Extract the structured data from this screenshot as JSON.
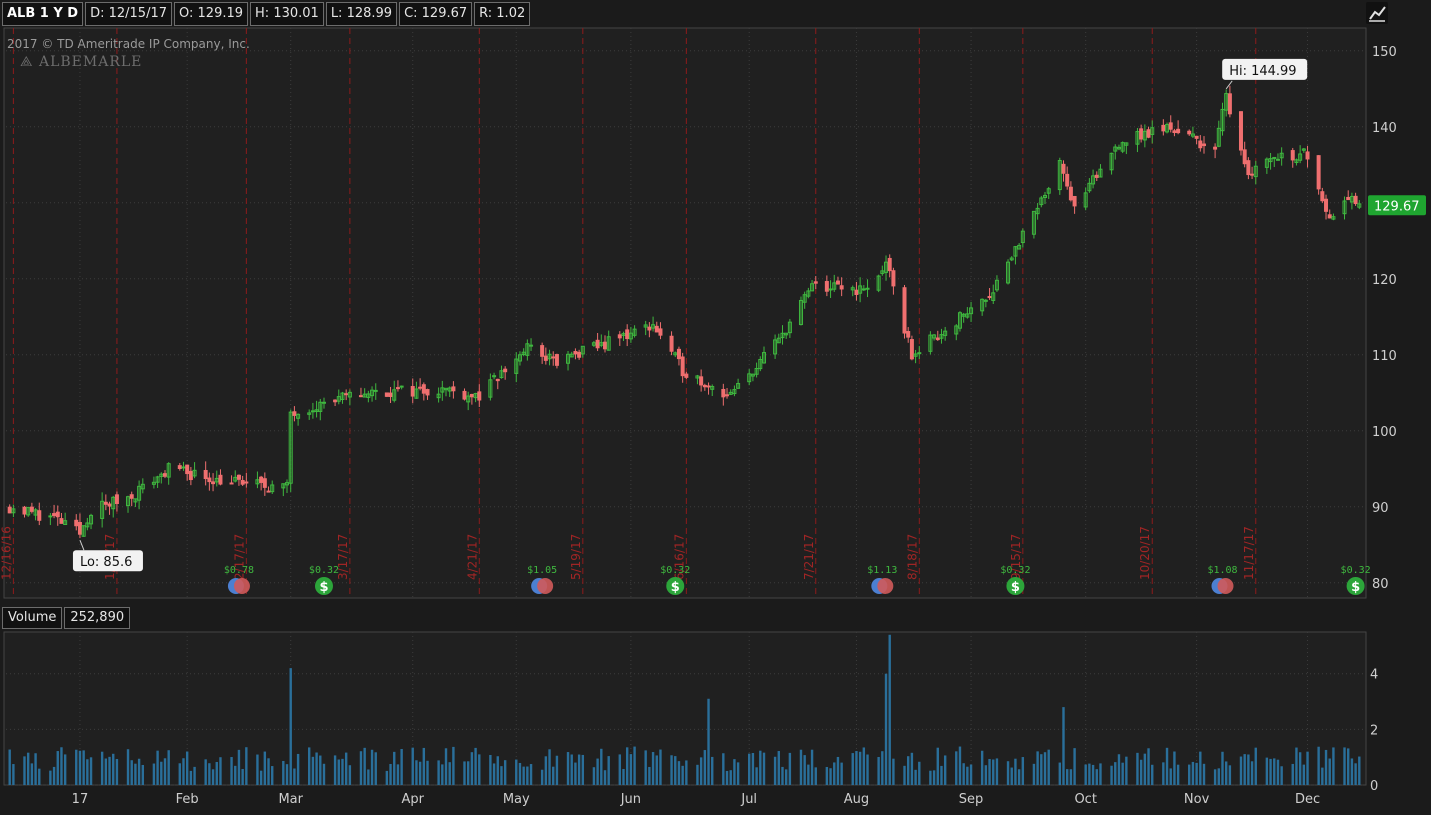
{
  "header": {
    "symbol": "ALB 1 Y D",
    "date": "D: 12/15/17",
    "open": "O: 129.19",
    "high": "H: 130.01",
    "low": "L: 128.99",
    "close": "C: 129.67",
    "range": "R: 1.02"
  },
  "copyright": "2017 © TD Ameritrade IP Company, Inc.",
  "logo_text": "ALBEMARLE",
  "volume_panel": {
    "label": "Volume",
    "value": "252,890"
  },
  "tool_icon": "chart-style-icon",
  "colors": {
    "up": "#3fb83f",
    "down": "#ef6f6f",
    "volume": "#2a6f9a",
    "grid": "#3c3c3c",
    "event_line": "#8c1b1b",
    "last_price_bg": "#1fa530",
    "background": "#1b1b1b"
  },
  "chart_data": {
    "type": "candlestick",
    "price_axis": {
      "ylim": [
        78,
        153
      ],
      "ticks": [
        "80",
        "90",
        "100",
        "110",
        "120",
        "130",
        "140",
        "150"
      ]
    },
    "volume_axis": {
      "ylim": [
        0,
        5.5
      ],
      "ticks": [
        "0",
        "2",
        "4"
      ]
    },
    "x_ticks": [
      "17",
      "Feb",
      "Mar",
      "Apr",
      "May",
      "Jun",
      "Jul",
      "Aug",
      "Sep",
      "Oct",
      "Nov",
      "Dec"
    ],
    "high_label": "Hi: 144.99",
    "low_label": "Lo: 85.6",
    "last_price": "129.67",
    "event_lines": [
      "12/16/16",
      "1/13/17",
      "2/17/17",
      "3/17/17",
      "4/21/17",
      "5/19/17",
      "6/16/17",
      "7/21/17",
      "8/18/17",
      "9/15/17",
      "10/20/17",
      "11/17/17"
    ],
    "dividends": [
      {
        "label": "$0.78",
        "type": "earnings"
      },
      {
        "label": "$0.32",
        "type": "dividend"
      },
      {
        "label": "$1.05",
        "type": "earnings"
      },
      {
        "label": "$0.32",
        "type": "dividend"
      },
      {
        "label": "$1.13",
        "type": "earnings"
      },
      {
        "label": "$0.32",
        "type": "dividend"
      },
      {
        "label": "$1.08",
        "type": "earnings"
      },
      {
        "label": "$0.32",
        "type": "dividend"
      }
    ],
    "price_anchors": [
      {
        "date": "2016-12-15",
        "close": 90.0
      },
      {
        "date": "2016-12-27",
        "close": 88.5
      },
      {
        "date": "2017-01-03",
        "close": 86.5
      },
      {
        "date": "2017-01-06",
        "close": 89.5
      },
      {
        "date": "2017-01-17",
        "close": 91.5
      },
      {
        "date": "2017-01-27",
        "close": 95.0
      },
      {
        "date": "2017-02-10",
        "close": 93.5
      },
      {
        "date": "2017-02-28",
        "close": 92.5
      },
      {
        "date": "2017-03-01",
        "close": 102.5
      },
      {
        "date": "2017-03-21",
        "close": 105.0
      },
      {
        "date": "2017-04-12",
        "close": 105.5
      },
      {
        "date": "2017-04-21",
        "close": 104.5
      },
      {
        "date": "2017-05-04",
        "close": 111.0
      },
      {
        "date": "2017-05-12",
        "close": 109.0
      },
      {
        "date": "2017-06-07",
        "close": 114.0
      },
      {
        "date": "2017-06-15",
        "close": 108.0
      },
      {
        "date": "2017-06-28",
        "close": 104.5
      },
      {
        "date": "2017-07-11",
        "close": 112.0
      },
      {
        "date": "2017-07-20",
        "close": 119.0
      },
      {
        "date": "2017-08-04",
        "close": 118.5
      },
      {
        "date": "2017-08-09",
        "close": 122.0
      },
      {
        "date": "2017-08-16",
        "close": 110.0
      },
      {
        "date": "2017-08-28",
        "close": 114.5
      },
      {
        "date": "2017-09-06",
        "close": 118.0
      },
      {
        "date": "2017-09-20",
        "close": 130.0
      },
      {
        "date": "2017-09-25",
        "close": 136.0
      },
      {
        "date": "2017-09-29",
        "close": 129.0
      },
      {
        "date": "2017-10-11",
        "close": 138.0
      },
      {
        "date": "2017-10-25",
        "close": 140.0
      },
      {
        "date": "2017-11-06",
        "close": 137.0
      },
      {
        "date": "2017-11-09",
        "close": 144.0
      },
      {
        "date": "2017-11-15",
        "close": 134.0
      },
      {
        "date": "2017-11-21",
        "close": 136.0
      },
      {
        "date": "2017-12-01",
        "close": 136.5
      },
      {
        "date": "2017-12-07",
        "close": 128.0
      },
      {
        "date": "2017-12-11",
        "close": 131.0
      },
      {
        "date": "2017-12-15",
        "close": 129.67
      }
    ],
    "volume_peaks": [
      {
        "date": "2017-03-01",
        "value": 4.2
      },
      {
        "date": "2017-08-09",
        "value": 4.0
      },
      {
        "date": "2017-08-10",
        "value": 5.4
      },
      {
        "date": "2017-06-22",
        "value": 3.1
      },
      {
        "date": "2017-09-26",
        "value": 2.8
      }
    ]
  }
}
